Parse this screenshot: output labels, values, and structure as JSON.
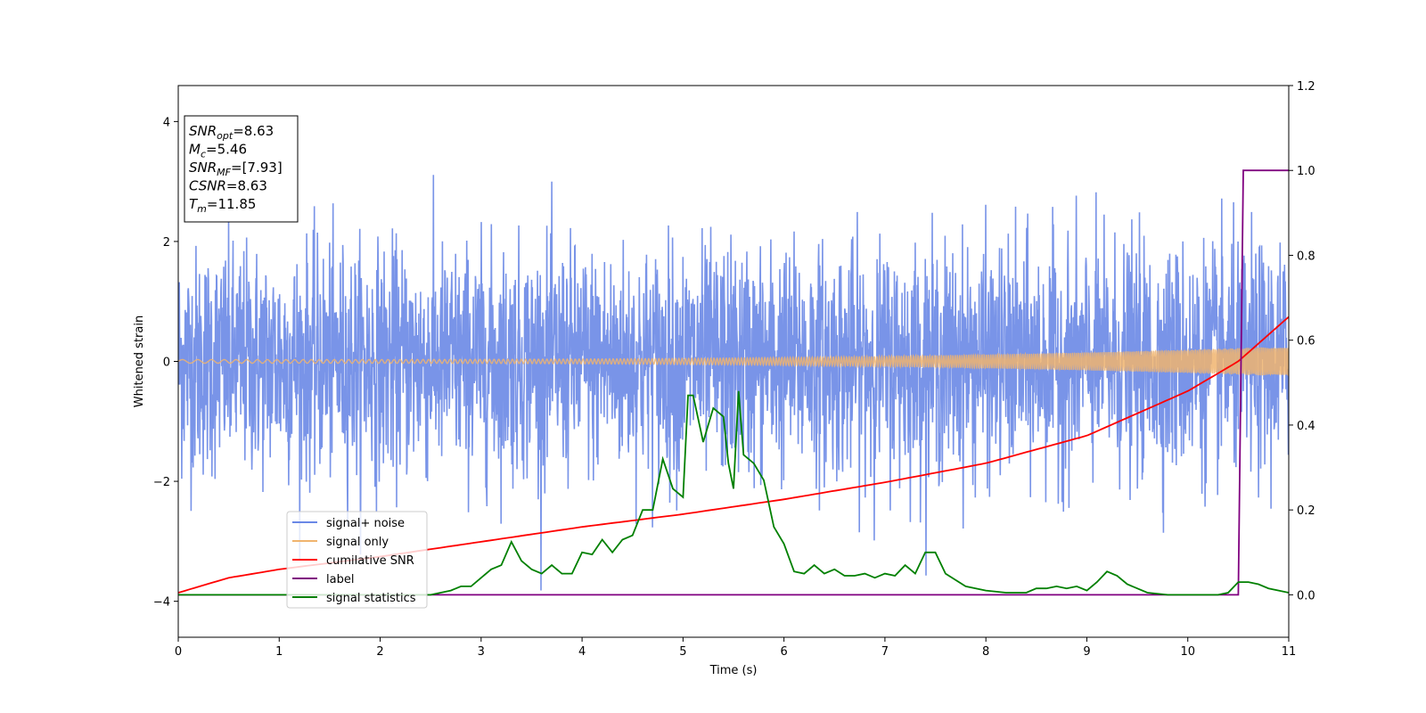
{
  "chart_data": {
    "type": "line",
    "xlabel": "Time (s)",
    "ylabel": "Whitened strain",
    "xlim": [
      0,
      11
    ],
    "ylim": [
      -4.6,
      4.6
    ],
    "y2lim": [
      -0.1,
      1.2
    ],
    "x_ticks": [
      "0",
      "1",
      "2",
      "3",
      "4",
      "5",
      "6",
      "7",
      "8",
      "9",
      "10",
      "11"
    ],
    "y_ticks": [
      "-4",
      "-2",
      "0",
      "2",
      "4"
    ],
    "y2_ticks": [
      "0.0",
      "0.2",
      "0.4",
      "0.6",
      "0.8",
      "1.0",
      "1.2"
    ],
    "legend_position": "lower-left",
    "series": [
      {
        "name": "signal+ noise",
        "axis": "left",
        "color": "#6a88e6",
        "style": "noise",
        "noise_std": 1.0,
        "peak_max": 4.15,
        "peak_min": -4.15
      },
      {
        "name": "signal only",
        "axis": "left",
        "color": "#f0b46e",
        "style": "chirp",
        "amplitude_start": 0.03,
        "amplitude_end": 0.25
      },
      {
        "name": "cumilative SNR",
        "axis": "right",
        "color": "#ff0000",
        "x": [
          0,
          0.5,
          1,
          2,
          3,
          4,
          5,
          6,
          7,
          8,
          9,
          10,
          10.5,
          11
        ],
        "y": [
          0.005,
          0.04,
          0.06,
          0.09,
          0.125,
          0.16,
          0.19,
          0.225,
          0.265,
          0.31,
          0.375,
          0.48,
          0.55,
          0.655
        ]
      },
      {
        "name": "label",
        "axis": "right",
        "color": "#800080",
        "x": [
          0,
          10.5,
          10.55,
          11
        ],
        "y": [
          0.0,
          0.0,
          1.0,
          1.0
        ]
      },
      {
        "name": "signal statistics",
        "axis": "right",
        "color": "#008000",
        "x": [
          0,
          2.5,
          2.7,
          2.8,
          2.9,
          3.0,
          3.1,
          3.2,
          3.3,
          3.4,
          3.5,
          3.6,
          3.7,
          3.8,
          3.9,
          4.0,
          4.1,
          4.2,
          4.3,
          4.4,
          4.5,
          4.6,
          4.7,
          4.8,
          4.9,
          5.0,
          5.05,
          5.1,
          5.2,
          5.3,
          5.4,
          5.45,
          5.5,
          5.55,
          5.6,
          5.7,
          5.8,
          5.9,
          6.0,
          6.1,
          6.2,
          6.3,
          6.4,
          6.5,
          6.6,
          6.7,
          6.8,
          6.9,
          7.0,
          7.1,
          7.2,
          7.3,
          7.4,
          7.5,
          7.6,
          7.8,
          8.0,
          8.2,
          8.4,
          8.5,
          8.6,
          8.7,
          8.8,
          8.9,
          9.0,
          9.1,
          9.2,
          9.3,
          9.4,
          9.6,
          9.8,
          10.0,
          10.3,
          10.4,
          10.5,
          10.6,
          10.7,
          10.8,
          10.9,
          11.0
        ],
        "y": [
          0.0,
          0.0,
          0.01,
          0.02,
          0.02,
          0.04,
          0.06,
          0.07,
          0.125,
          0.08,
          0.06,
          0.05,
          0.07,
          0.05,
          0.05,
          0.1,
          0.095,
          0.13,
          0.1,
          0.13,
          0.14,
          0.2,
          0.2,
          0.32,
          0.25,
          0.23,
          0.47,
          0.47,
          0.36,
          0.44,
          0.42,
          0.31,
          0.25,
          0.48,
          0.33,
          0.31,
          0.27,
          0.16,
          0.12,
          0.055,
          0.05,
          0.07,
          0.05,
          0.06,
          0.045,
          0.045,
          0.05,
          0.04,
          0.05,
          0.045,
          0.07,
          0.05,
          0.1,
          0.1,
          0.05,
          0.02,
          0.01,
          0.005,
          0.005,
          0.015,
          0.015,
          0.02,
          0.015,
          0.02,
          0.01,
          0.03,
          0.055,
          0.045,
          0.025,
          0.005,
          0.0,
          0.0,
          0.0,
          0.005,
          0.03,
          0.03,
          0.025,
          0.015,
          0.01,
          0.005
        ]
      }
    ],
    "annotation": {
      "lines": [
        {
          "base": "SNR",
          "sub": "opt",
          "value": "=8.63"
        },
        {
          "base": "M",
          "sub": "c",
          "value": "=5.46"
        },
        {
          "base": "SNR",
          "sub": "MF",
          "value": "=[7.93]"
        },
        {
          "base": "CSNR",
          "sub": "",
          "value": "=8.63"
        },
        {
          "base": "T",
          "sub": "m",
          "value": "=11.85"
        }
      ]
    }
  }
}
